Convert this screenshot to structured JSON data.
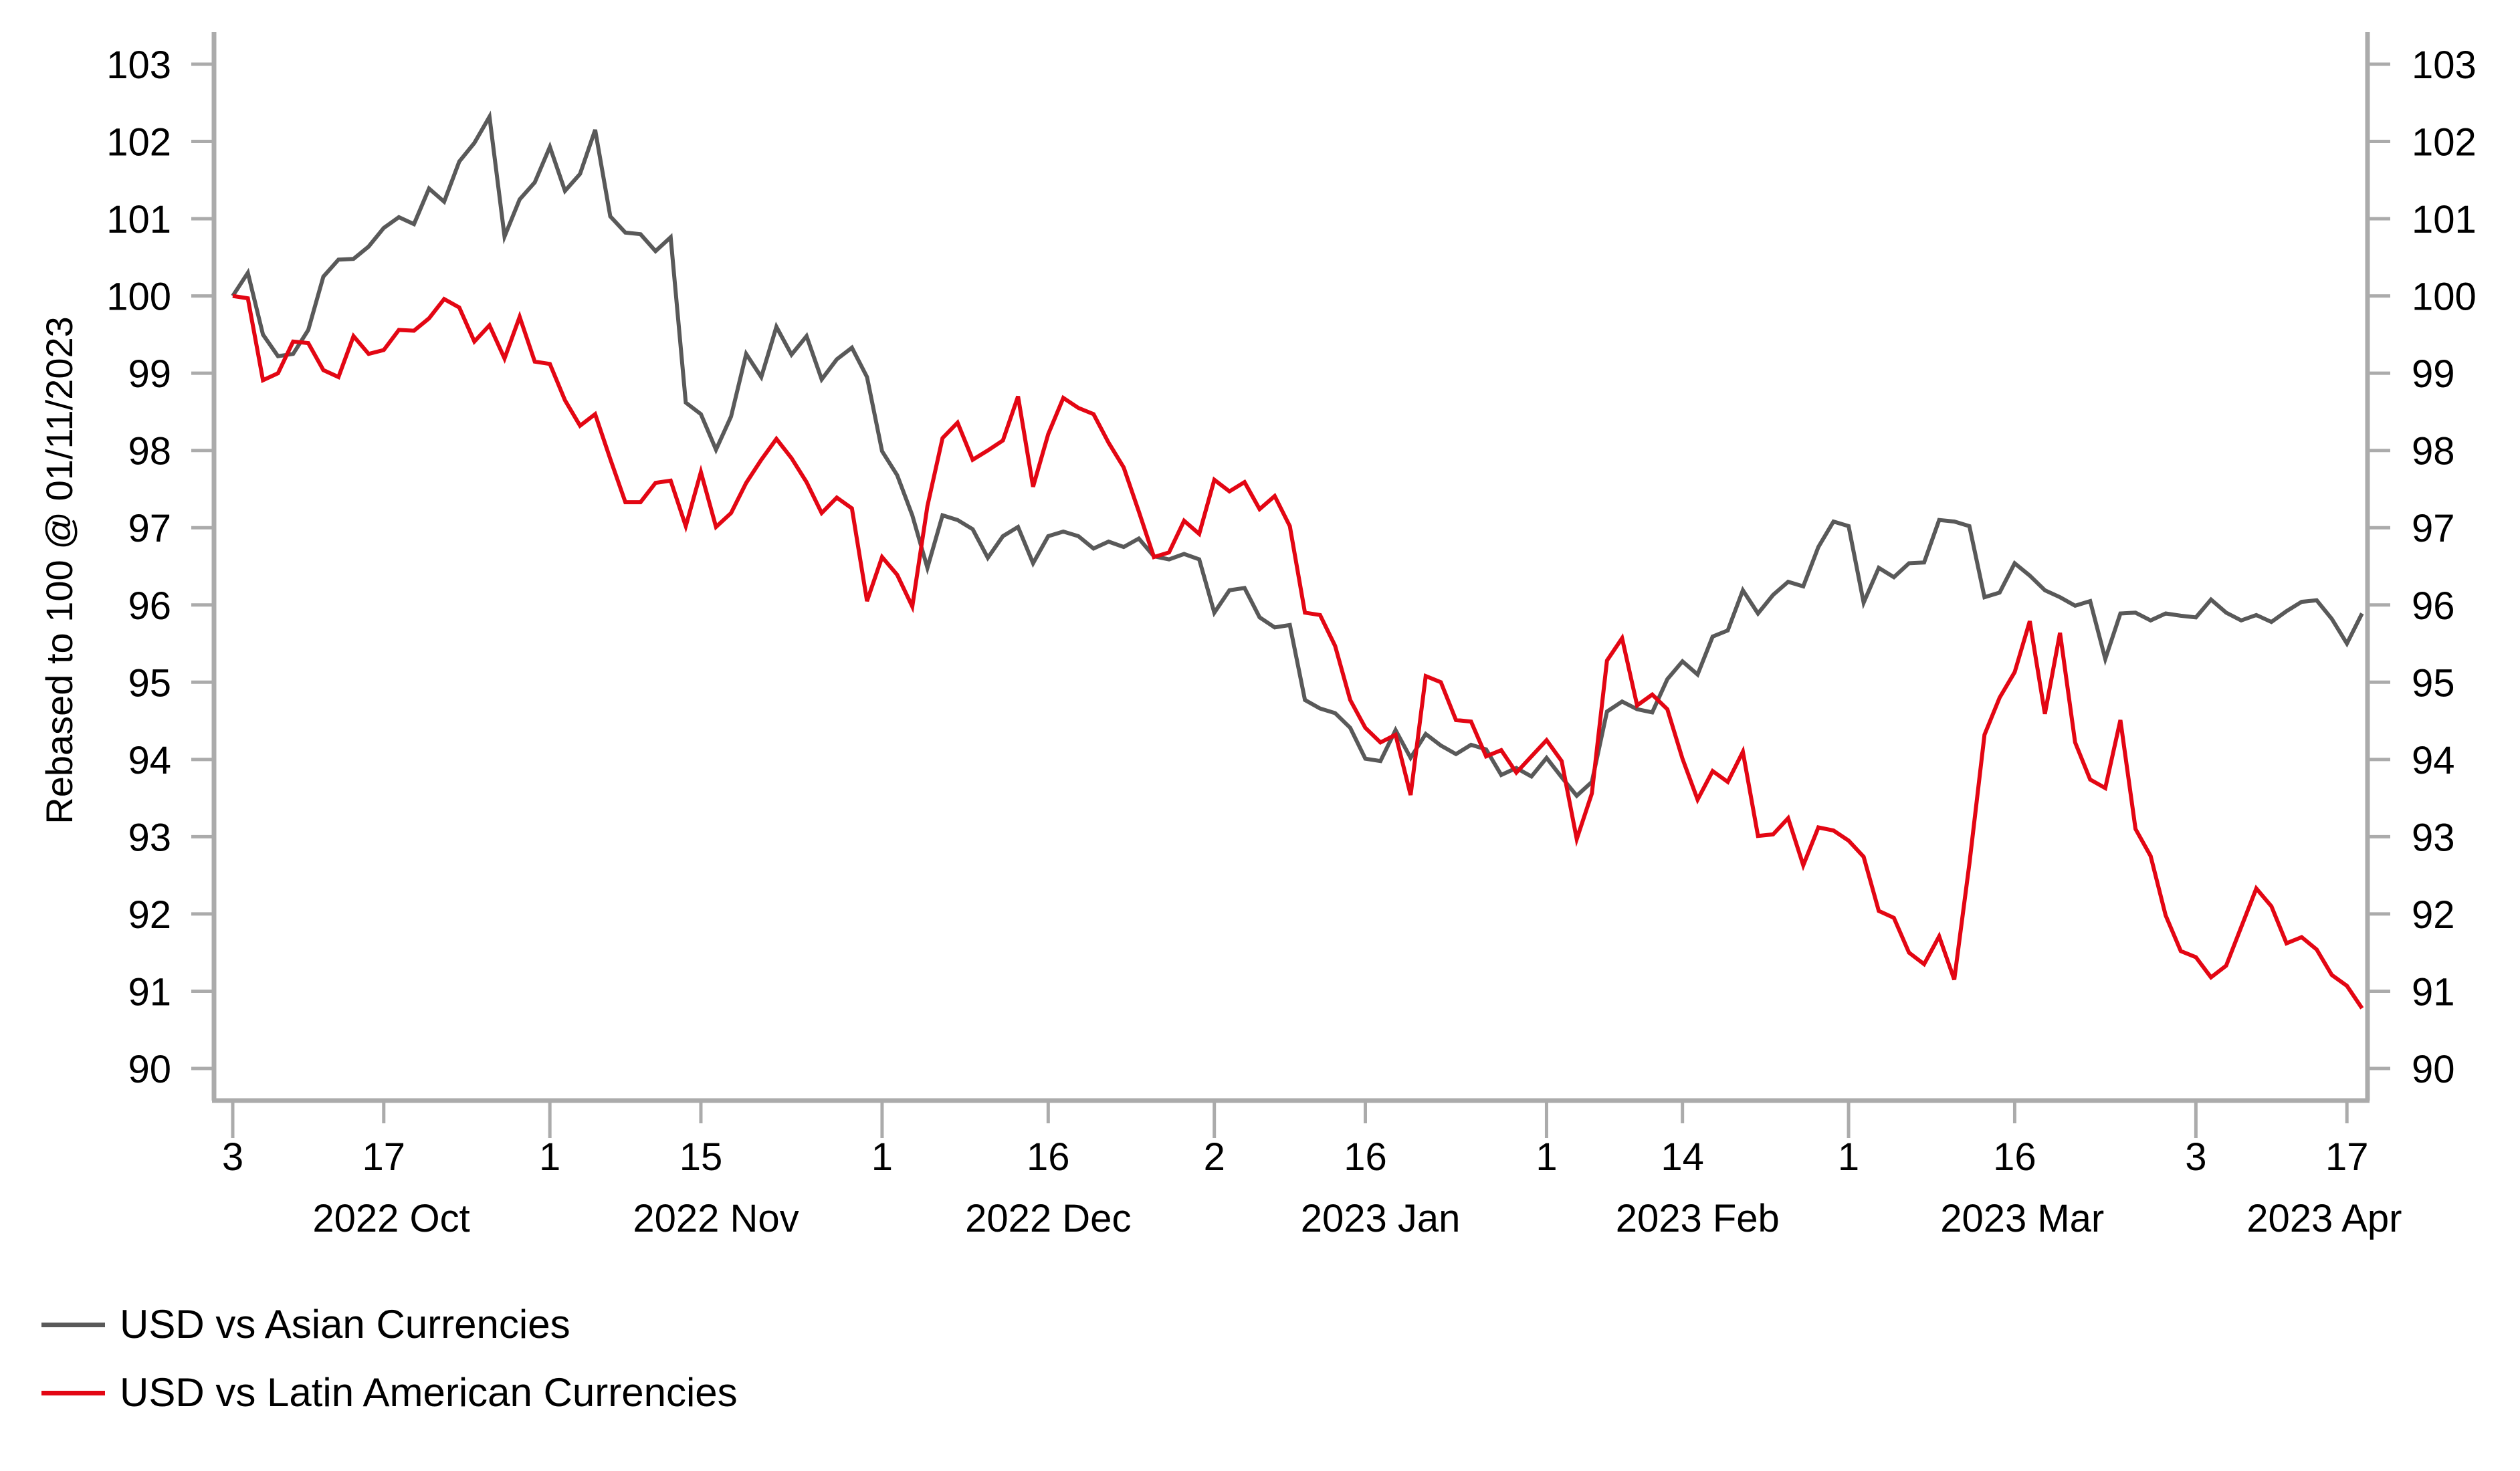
{
  "chart_data": {
    "type": "line",
    "title": "",
    "ylabel": "Rebased to 100 @ 01/11/2023",
    "ylabel_right": "",
    "xlabel": "",
    "ylim": [
      90,
      103
    ],
    "yticks": [
      "103",
      "102",
      "101",
      "100",
      "99",
      "98",
      "97",
      "96",
      "95",
      "94",
      "93",
      "92",
      "91",
      "90"
    ],
    "ytick_values": [
      103,
      102,
      101,
      100,
      99,
      98,
      97,
      96,
      95,
      94,
      93,
      92,
      91,
      90
    ],
    "grid": false,
    "legend_position": "bottom-left",
    "x_start": "2022-10-03",
    "x_frequency": "business days",
    "x_day_ticks": [
      {
        "label": "3",
        "index": 0,
        "major": true
      },
      {
        "label": "17",
        "index": 10,
        "major": false
      },
      {
        "label": "1",
        "index": 21,
        "major": true
      },
      {
        "label": "15",
        "index": 31,
        "major": false
      },
      {
        "label": "1",
        "index": 43,
        "major": true
      },
      {
        "label": "16",
        "index": 54,
        "major": false
      },
      {
        "label": "2",
        "index": 65,
        "major": true
      },
      {
        "label": "16",
        "index": 75,
        "major": false
      },
      {
        "label": "1",
        "index": 87,
        "major": true
      },
      {
        "label": "14",
        "index": 96,
        "major": false
      },
      {
        "label": "1",
        "index": 107,
        "major": true
      },
      {
        "label": "16",
        "index": 118,
        "major": false
      },
      {
        "label": "3",
        "index": 130,
        "major": true
      },
      {
        "label": "17",
        "index": 140,
        "major": false
      }
    ],
    "x_month_labels": [
      {
        "label": "2022 Oct",
        "index": 10.5
      },
      {
        "label": "2022 Nov",
        "index": 32
      },
      {
        "label": "2022 Dec",
        "index": 54
      },
      {
        "label": "2023 Jan",
        "index": 76
      },
      {
        "label": "2023 Feb",
        "index": 97
      },
      {
        "label": "2023 Mar",
        "index": 118.5
      },
      {
        "label": "2023 Apr",
        "index": 138.5
      }
    ],
    "series": [
      {
        "name": "USD vs Asian Currencies",
        "color": "#595959",
        "values": [
          100.0,
          100.3,
          99.5,
          99.22,
          99.25,
          99.56,
          100.25,
          100.47,
          100.48,
          100.64,
          100.88,
          101.02,
          100.93,
          101.39,
          101.22,
          101.74,
          101.98,
          102.32,
          100.77,
          101.25,
          101.47,
          101.93,
          101.36,
          101.58,
          102.15,
          101.03,
          100.82,
          100.8,
          100.58,
          100.76,
          98.62,
          98.47,
          98.01,
          98.44,
          99.25,
          98.95,
          99.6,
          99.24,
          99.48,
          98.92,
          99.18,
          99.33,
          98.95,
          97.99,
          97.68,
          97.16,
          96.48,
          97.16,
          97.1,
          96.98,
          96.61,
          96.89,
          97.01,
          96.54,
          96.89,
          96.95,
          96.89,
          96.73,
          96.82,
          96.75,
          96.86,
          96.63,
          96.59,
          96.66,
          96.59,
          95.9,
          96.19,
          96.22,
          95.84,
          95.71,
          95.74,
          94.77,
          94.66,
          94.6,
          94.41,
          94.01,
          93.98,
          94.38,
          94.02,
          94.33,
          94.18,
          94.07,
          94.19,
          94.13,
          93.8,
          93.89,
          93.78,
          94.02,
          93.77,
          93.53,
          93.71,
          94.62,
          94.75,
          94.65,
          94.61,
          95.04,
          95.27,
          95.1,
          95.59,
          95.67,
          96.19,
          95.89,
          96.13,
          96.3,
          96.24,
          96.75,
          97.08,
          97.02,
          96.03,
          96.48,
          96.36,
          96.54,
          96.55,
          97.1,
          97.08,
          97.02,
          96.1,
          96.16,
          96.54,
          96.38,
          96.19,
          96.1,
          95.99,
          96.05,
          95.3,
          95.89,
          95.9,
          95.8,
          95.89,
          95.86,
          95.84,
          96.07,
          95.9,
          95.8,
          95.87,
          95.78,
          95.92,
          96.04,
          96.06,
          95.82,
          95.5,
          95.89
        ]
      },
      {
        "name": "USD vs Latin American Currencies",
        "color": "#e30613",
        "values": [
          100.0,
          99.97,
          98.91,
          99.0,
          99.41,
          99.39,
          99.04,
          98.95,
          99.48,
          99.25,
          99.3,
          99.56,
          99.55,
          99.71,
          99.96,
          99.85,
          99.41,
          99.62,
          99.19,
          99.73,
          99.15,
          99.12,
          98.65,
          98.32,
          98.47,
          97.89,
          97.33,
          97.33,
          97.58,
          97.61,
          97.02,
          97.72,
          97.01,
          97.19,
          97.58,
          97.88,
          98.15,
          97.9,
          97.59,
          97.19,
          97.39,
          97.25,
          96.05,
          96.62,
          96.39,
          95.98,
          97.28,
          98.16,
          98.36,
          97.88,
          98.0,
          98.13,
          98.7,
          97.53,
          98.21,
          98.68,
          98.55,
          98.47,
          98.1,
          97.78,
          97.21,
          96.62,
          96.68,
          97.09,
          96.92,
          97.62,
          97.47,
          97.59,
          97.24,
          97.41,
          97.02,
          95.9,
          95.87,
          95.47,
          94.77,
          94.41,
          94.22,
          94.32,
          93.54,
          95.08,
          95.0,
          94.51,
          94.49,
          94.04,
          94.12,
          93.83,
          94.04,
          94.25,
          93.98,
          92.97,
          93.56,
          95.28,
          95.57,
          94.7,
          94.84,
          94.65,
          94.01,
          93.48,
          93.85,
          93.71,
          94.1,
          93.01,
          93.03,
          93.24,
          92.63,
          93.12,
          93.08,
          92.95,
          92.74,
          92.04,
          91.95,
          91.5,
          91.35,
          91.71,
          91.15,
          92.65,
          94.32,
          94.8,
          95.13,
          95.79,
          94.59,
          95.64,
          94.22,
          93.74,
          93.63,
          94.51,
          93.1,
          92.75,
          91.98,
          91.52,
          91.44,
          91.18,
          91.33,
          91.83,
          92.33,
          92.1,
          91.62,
          91.7,
          91.54,
          91.21,
          91.07,
          90.78
        ]
      }
    ]
  },
  "legend": {
    "items": [
      {
        "label": "USD vs Asian Currencies",
        "color": "#595959"
      },
      {
        "label": "USD vs Latin American Currencies",
        "color": "#e30613"
      }
    ]
  }
}
